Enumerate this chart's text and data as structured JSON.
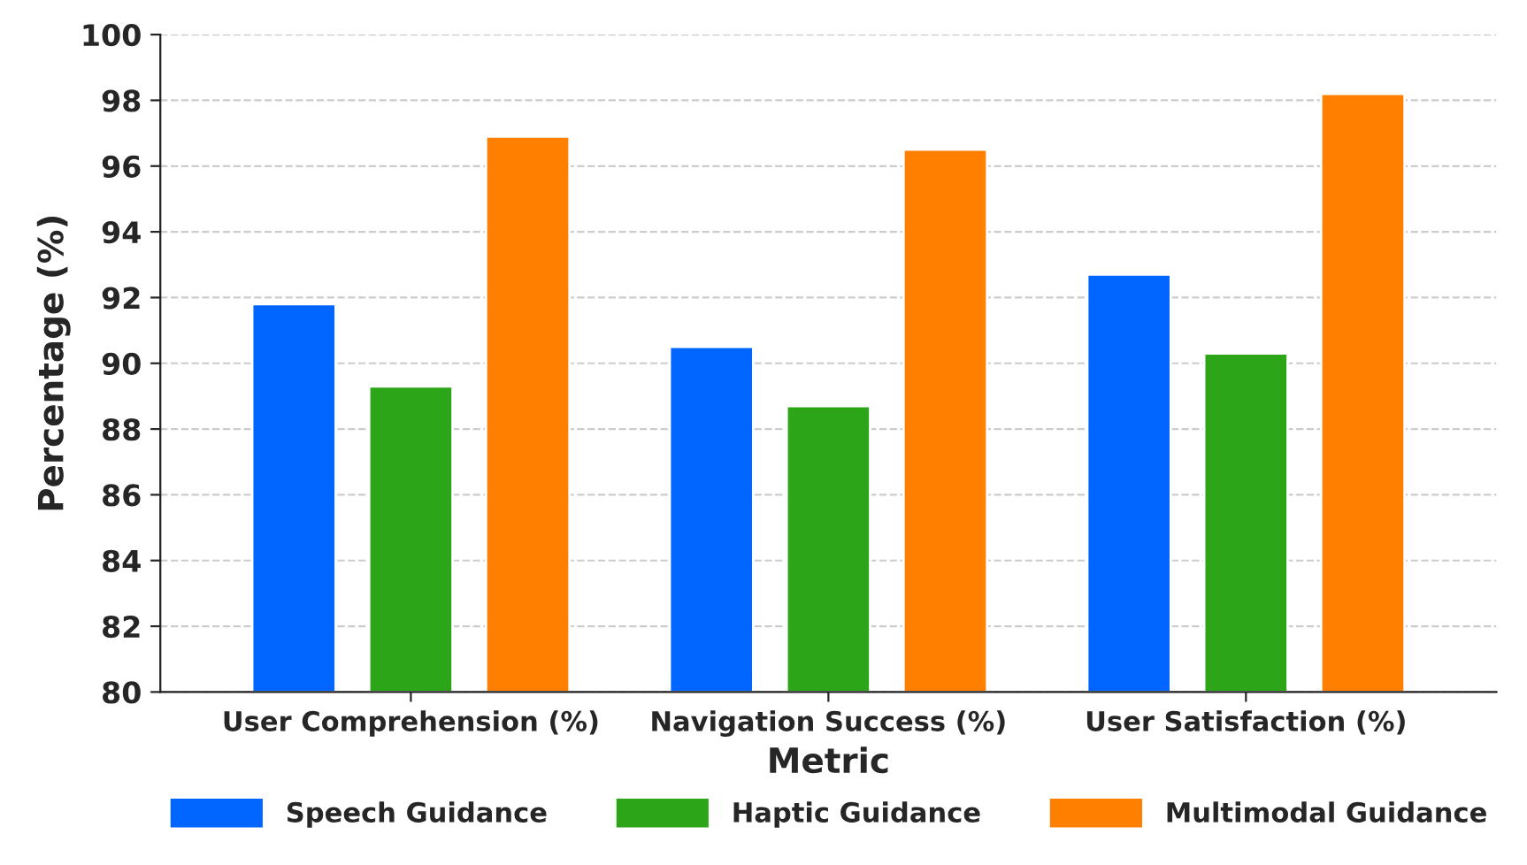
{
  "chart_data": {
    "type": "bar",
    "xlabel": "Metric",
    "ylabel": "Percentage (%)",
    "categories": [
      "User Comprehension (%)",
      "Navigation Success (%)",
      "User Satisfaction (%)"
    ],
    "series": [
      {
        "name": "Speech Guidance",
        "color": "#0066ff",
        "values": [
          91.8,
          90.5,
          92.7
        ]
      },
      {
        "name": "Haptic Guidance",
        "color": "#2ca618",
        "values": [
          89.3,
          88.7,
          90.3
        ]
      },
      {
        "name": "Multimodal Guidance",
        "color": "#ff7f00",
        "values": [
          96.9,
          96.5,
          98.2
        ]
      }
    ],
    "ylim": [
      80,
      100
    ],
    "yticks": [
      80,
      82,
      84,
      86,
      88,
      90,
      92,
      94,
      96,
      98,
      100
    ],
    "grid": "y",
    "legend": "bottom"
  }
}
